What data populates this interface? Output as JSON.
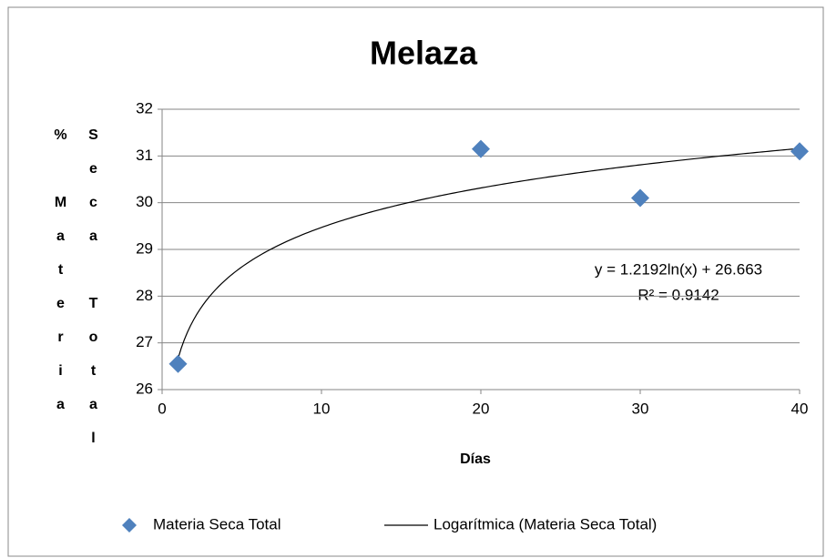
{
  "chart_data": {
    "type": "scatter",
    "title": "Melaza",
    "x_label": "Días",
    "y_label": "% Materia Seca Total",
    "series": [
      {
        "name": "Materia Seca Total",
        "color": "#4f81bd",
        "x": [
          1,
          20,
          30,
          40
        ],
        "values": [
          26.55,
          31.15,
          30.1,
          31.1
        ]
      }
    ],
    "trendline": {
      "name": "Logarítmica (Materia Seca Total)",
      "type": "log",
      "color": "#000000",
      "slope": 1.2192,
      "intercept": 26.663,
      "equation": "y = 1.2192ln(x) + 26.663",
      "r2_label": "R² = 0.9142"
    },
    "xlim": [
      0,
      40
    ],
    "xticks": [
      0,
      10,
      20,
      30,
      40
    ],
    "ylim": [
      26,
      32
    ],
    "yticks": [
      26,
      27,
      28,
      29,
      30,
      31,
      32
    ],
    "grid": true,
    "legend": "bottom"
  }
}
